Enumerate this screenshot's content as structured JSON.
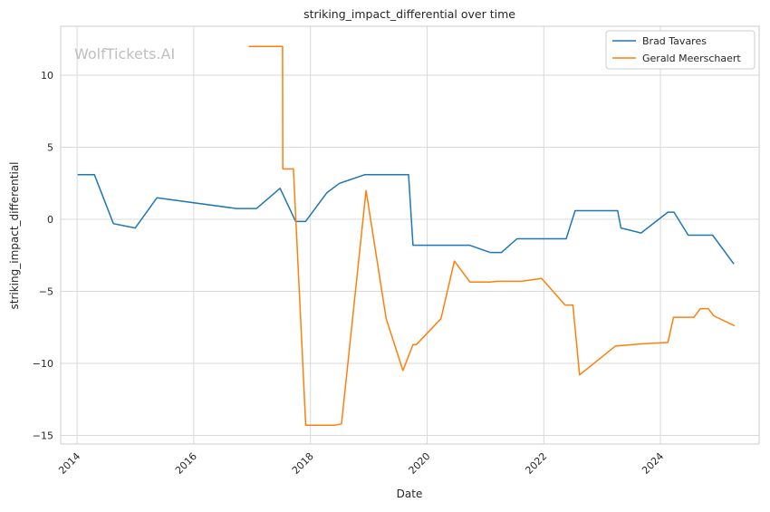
{
  "watermark": "WolfTickets.AI",
  "chart_data": {
    "type": "line",
    "title": "striking_impact_differential over time",
    "xlabel": "Date",
    "ylabel": "striking_impact_differential",
    "xlim": [
      "2013-09-20",
      "2025-09-10"
    ],
    "ylim": [
      -15.6,
      13.4
    ],
    "x_ticks": [
      "2014",
      "2016",
      "2018",
      "2020",
      "2022",
      "2024"
    ],
    "y_ticks": [
      10,
      5,
      0,
      -5,
      -10,
      -15
    ],
    "y_tick_labels": [
      "10",
      "5",
      "0",
      "−5",
      "−10",
      "−15"
    ],
    "grid": true,
    "legend_position": "top-right",
    "series": [
      {
        "name": "Brad Tavares",
        "color": "#1f77b4",
        "points": [
          [
            "2014-01-04",
            3.1
          ],
          [
            "2014-04-19",
            3.1
          ],
          [
            "2014-08-16",
            -0.3
          ],
          [
            "2014-12-31",
            -0.6
          ],
          [
            "2015-05-16",
            1.5
          ],
          [
            "2016-09-23",
            0.75
          ],
          [
            "2017-01-28",
            0.75
          ],
          [
            "2017-06-25",
            2.15
          ],
          [
            "2017-09-30",
            -0.15
          ],
          [
            "2017-12-01",
            -0.15
          ],
          [
            "2018-04-14",
            1.85
          ],
          [
            "2018-07-01",
            2.5
          ],
          [
            "2018-12-08",
            3.1
          ],
          [
            "2019-09-07",
            3.1
          ],
          [
            "2019-10-05",
            -1.8
          ],
          [
            "2020-09-22",
            -1.8
          ],
          [
            "2021-01-30",
            -2.3
          ],
          [
            "2021-04-11",
            -2.3
          ],
          [
            "2021-07-17",
            -1.35
          ],
          [
            "2022-05-21",
            -1.35
          ],
          [
            "2022-07-16",
            0.6
          ],
          [
            "2023-04-08",
            0.6
          ],
          [
            "2023-04-29",
            -0.6
          ],
          [
            "2023-09-02",
            -0.95
          ],
          [
            "2024-02-17",
            0.5
          ],
          [
            "2024-03-26",
            0.5
          ],
          [
            "2024-06-23",
            -1.1
          ],
          [
            "2024-11-23",
            -1.1
          ],
          [
            "2025-04-05",
            -3.1
          ]
        ]
      },
      {
        "name": "Gerald Meerschaert",
        "color": "#ff7f0e",
        "points": [
          [
            "2016-12-10",
            12.0
          ],
          [
            "2017-07-10",
            12.0
          ],
          [
            "2017-07-12",
            3.5
          ],
          [
            "2017-09-16",
            3.5
          ],
          [
            "2017-12-02",
            -14.3
          ],
          [
            "2018-06-01",
            -14.3
          ],
          [
            "2018-07-14",
            -14.2
          ],
          [
            "2018-12-15",
            2.0
          ],
          [
            "2019-04-20",
            -6.9
          ],
          [
            "2019-08-03",
            -10.5
          ],
          [
            "2019-10-05",
            -8.7
          ],
          [
            "2019-10-26",
            -8.7
          ],
          [
            "2020-03-28",
            -6.9
          ],
          [
            "2020-06-20",
            -2.9
          ],
          [
            "2020-09-25",
            -4.35
          ],
          [
            "2021-01-30",
            -4.35
          ],
          [
            "2021-03-20",
            -4.3
          ],
          [
            "2021-08-14",
            -4.3
          ],
          [
            "2021-12-18",
            -4.1
          ],
          [
            "2022-05-14",
            -5.95
          ],
          [
            "2022-07-02",
            -5.95
          ],
          [
            "2022-08-13",
            -10.8
          ],
          [
            "2023-03-25",
            -8.8
          ],
          [
            "2023-09-02",
            -8.65
          ],
          [
            "2024-02-17",
            -8.55
          ],
          [
            "2024-03-23",
            -6.8
          ],
          [
            "2024-07-29",
            -6.8
          ],
          [
            "2024-09-07",
            -6.2
          ],
          [
            "2024-10-26",
            -6.2
          ],
          [
            "2024-11-30",
            -6.7
          ],
          [
            "2025-04-10",
            -7.4
          ]
        ]
      }
    ]
  }
}
